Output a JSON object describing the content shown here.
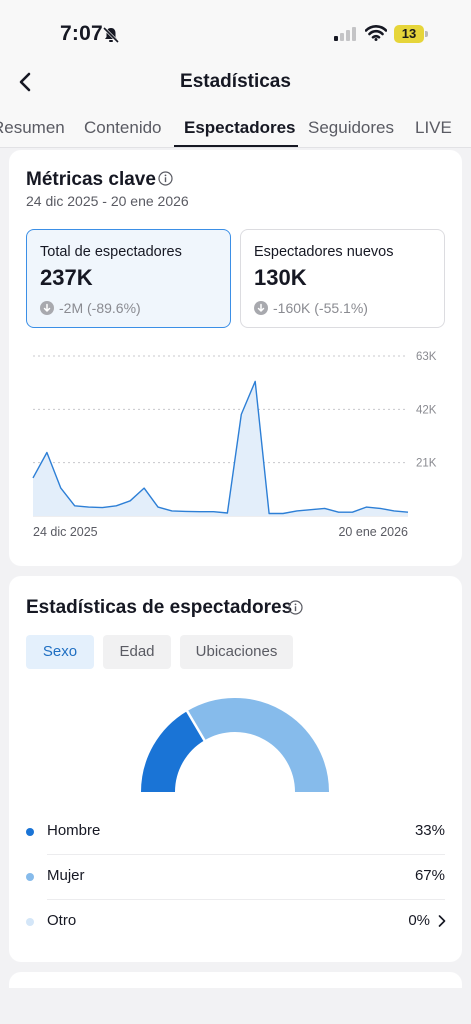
{
  "status_bar": {
    "time": "7:07",
    "battery": "13"
  },
  "header": {
    "title": "Estadísticas"
  },
  "tabs": [
    {
      "label": "Resumen"
    },
    {
      "label": "Contenido"
    },
    {
      "label": "Espectadores",
      "active": true
    },
    {
      "label": "Seguidores"
    },
    {
      "label": "LIVE"
    }
  ],
  "key_metrics": {
    "title": "Métricas clave",
    "date_range": "24 dic 2025 - 20 ene 2026",
    "metrics": [
      {
        "label": "Total de espectadores",
        "value": "237K",
        "change": "-2M (-89.6%)",
        "selected": true
      },
      {
        "label": "Espectadores nuevos",
        "value": "130K",
        "change": "-160K (-55.1%)",
        "selected": false
      }
    ]
  },
  "chart_data": {
    "type": "area",
    "x": [
      "24 dic 2025",
      "25 dic",
      "26 dic",
      "27 dic",
      "28 dic",
      "29 dic",
      "30 dic",
      "31 dic",
      "1 ene",
      "2 ene",
      "3 ene",
      "4 ene",
      "5 ene",
      "6 ene",
      "7 ene",
      "8 ene",
      "9 ene",
      "10 ene",
      "11 ene",
      "12 ene",
      "13 ene",
      "14 ene",
      "15 ene",
      "16 ene",
      "17 ene",
      "18 ene",
      "19 ene",
      "20 ene 2026"
    ],
    "values": [
      15,
      25,
      11,
      4,
      3.5,
      3.3,
      4,
      6,
      11,
      3.5,
      2,
      1.8,
      1.7,
      1.7,
      1.2,
      40,
      53,
      1,
      1,
      2,
      2.5,
      3,
      1.5,
      1.5,
      3.5,
      3,
      2,
      1.5
    ],
    "x_tick_labels": [
      "24 dic 2025",
      "20 ene 2026"
    ],
    "y_ticks": [
      {
        "value": 21000,
        "label": "21K"
      },
      {
        "value": 42000,
        "label": "42K"
      },
      {
        "value": 63000,
        "label": "63K"
      }
    ],
    "ylim": [
      0,
      63
    ],
    "line_color": "#2d7fd6",
    "fill_color": "#e3eefa"
  },
  "viewer_stats": {
    "title": "Estadísticas de espectadores",
    "filters": [
      {
        "label": "Sexo",
        "active": true
      },
      {
        "label": "Edad",
        "active": false
      },
      {
        "label": "Ubicaciones",
        "active": false
      }
    ],
    "gender": [
      {
        "label": "Hombre",
        "value": "33%",
        "share": 33,
        "color": "#1a74d6"
      },
      {
        "label": "Mujer",
        "value": "67%",
        "share": 67,
        "color": "#86bbeb"
      },
      {
        "label": "Otro",
        "value": "0%",
        "share": 0,
        "color": "#d4e6f8"
      }
    ]
  }
}
